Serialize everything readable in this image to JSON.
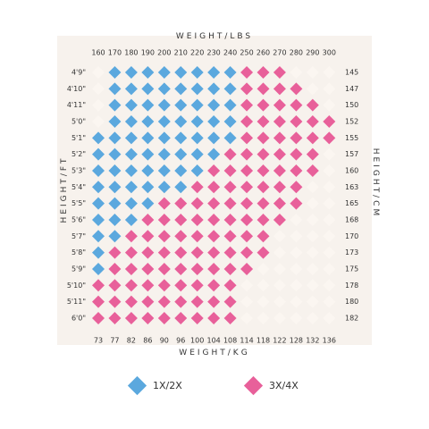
{
  "chart_data": {
    "type": "scatter",
    "top_axis": {
      "label": "WEIGHT/LBS",
      "ticks": [
        "160",
        "170",
        "180",
        "190",
        "200",
        "210",
        "220",
        "230",
        "240",
        "250",
        "260",
        "270",
        "280",
        "290",
        "300"
      ]
    },
    "bottom_axis": {
      "label": "WEIGHT/KG",
      "ticks": [
        "73",
        "77",
        "82",
        "86",
        "90",
        "96",
        "100",
        "104",
        "108",
        "114",
        "118",
        "122",
        "128",
        "132",
        "136"
      ]
    },
    "left_axis": {
      "label": "HEIGHT/FT",
      "ticks": [
        "4'9\"",
        "4'10\"",
        "4'11\"",
        "5'0\"",
        "5'1\"",
        "5'2\"",
        "5'3\"",
        "5'4\"",
        "5'5\"",
        "5'6\"",
        "5'7\"",
        "5'8\"",
        "5'9\"",
        "5'10\"",
        "5'11\"",
        "6'0\""
      ]
    },
    "right_axis": {
      "label": "HEIGHT/CM",
      "ticks": [
        "145",
        "147",
        "150",
        "152",
        "155",
        "157",
        "160",
        "163",
        "165",
        "168",
        "170",
        "173",
        "175",
        "178",
        "180",
        "182"
      ]
    },
    "series": [
      {
        "name": "1X/2X",
        "color": "#5ba8de",
        "rows": [
          {
            "height": "4'9\"",
            "weights": [
              170,
              180,
              190,
              200,
              210,
              220,
              230,
              240
            ]
          },
          {
            "height": "4'10\"",
            "weights": [
              170,
              180,
              190,
              200,
              210,
              220,
              230,
              240
            ]
          },
          {
            "height": "4'11\"",
            "weights": [
              170,
              180,
              190,
              200,
              210,
              220,
              230,
              240
            ]
          },
          {
            "height": "5'0\"",
            "weights": [
              170,
              180,
              190,
              200,
              210,
              220,
              230,
              240
            ]
          },
          {
            "height": "5'1\"",
            "weights": [
              160,
              170,
              180,
              190,
              200,
              210,
              220,
              230,
              240
            ]
          },
          {
            "height": "5'2\"",
            "weights": [
              160,
              170,
              180,
              190,
              200,
              210,
              220,
              230
            ]
          },
          {
            "height": "5'3\"",
            "weights": [
              160,
              170,
              180,
              190,
              200,
              210,
              220
            ]
          },
          {
            "height": "5'4\"",
            "weights": [
              160,
              170,
              180,
              190,
              200,
              210
            ]
          },
          {
            "height": "5'5\"",
            "weights": [
              160,
              170,
              180,
              190
            ]
          },
          {
            "height": "5'6\"",
            "weights": [
              160,
              170,
              180
            ]
          },
          {
            "height": "5'7\"",
            "weights": [
              160,
              170
            ]
          },
          {
            "height": "5'8\"",
            "weights": [
              160
            ]
          },
          {
            "height": "5'9\"",
            "weights": [
              160
            ]
          }
        ]
      },
      {
        "name": "3X/4X",
        "color": "#e8609a",
        "rows": [
          {
            "height": "4'9\"",
            "weights": [
              250,
              260,
              270
            ]
          },
          {
            "height": "4'10\"",
            "weights": [
              250,
              260,
              270,
              280
            ]
          },
          {
            "height": "4'11\"",
            "weights": [
              250,
              260,
              270,
              280,
              290
            ]
          },
          {
            "height": "5'0\"",
            "weights": [
              250,
              260,
              270,
              280,
              290,
              300
            ]
          },
          {
            "height": "5'1\"",
            "weights": [
              250,
              260,
              270,
              280,
              290,
              300
            ]
          },
          {
            "height": "5'2\"",
            "weights": [
              240,
              250,
              260,
              270,
              280,
              290
            ]
          },
          {
            "height": "5'3\"",
            "weights": [
              230,
              240,
              250,
              260,
              270,
              280,
              290
            ]
          },
          {
            "height": "5'4\"",
            "weights": [
              220,
              230,
              240,
              250,
              260,
              270,
              280
            ]
          },
          {
            "height": "5'5\"",
            "weights": [
              200,
              210,
              220,
              230,
              240,
              250,
              260,
              270,
              280
            ]
          },
          {
            "height": "5'6\"",
            "weights": [
              190,
              200,
              210,
              220,
              230,
              240,
              250,
              260,
              270
            ]
          },
          {
            "height": "5'7\"",
            "weights": [
              180,
              190,
              200,
              210,
              220,
              230,
              240,
              250,
              260
            ]
          },
          {
            "height": "5'8\"",
            "weights": [
              170,
              180,
              190,
              200,
              210,
              220,
              230,
              240,
              250,
              260
            ]
          },
          {
            "height": "5'9\"",
            "weights": [
              170,
              180,
              190,
              200,
              210,
              220,
              230,
              240,
              250
            ]
          },
          {
            "height": "5'10\"",
            "weights": [
              160,
              170,
              180,
              190,
              200,
              210,
              220,
              230,
              240
            ]
          },
          {
            "height": "5'11\"",
            "weights": [
              160,
              170,
              180,
              190,
              200,
              210,
              220,
              230,
              240
            ]
          },
          {
            "height": "6'0\"",
            "weights": [
              160,
              170,
              180,
              190,
              200,
              210,
              220,
              230,
              240
            ]
          }
        ]
      }
    ],
    "background_grid": {
      "color": "#f4efea",
      "dot_color": "#fbf6f1"
    },
    "legend": {
      "placement": "bottom",
      "items": [
        "1X/2X",
        "3X/4X"
      ]
    }
  }
}
